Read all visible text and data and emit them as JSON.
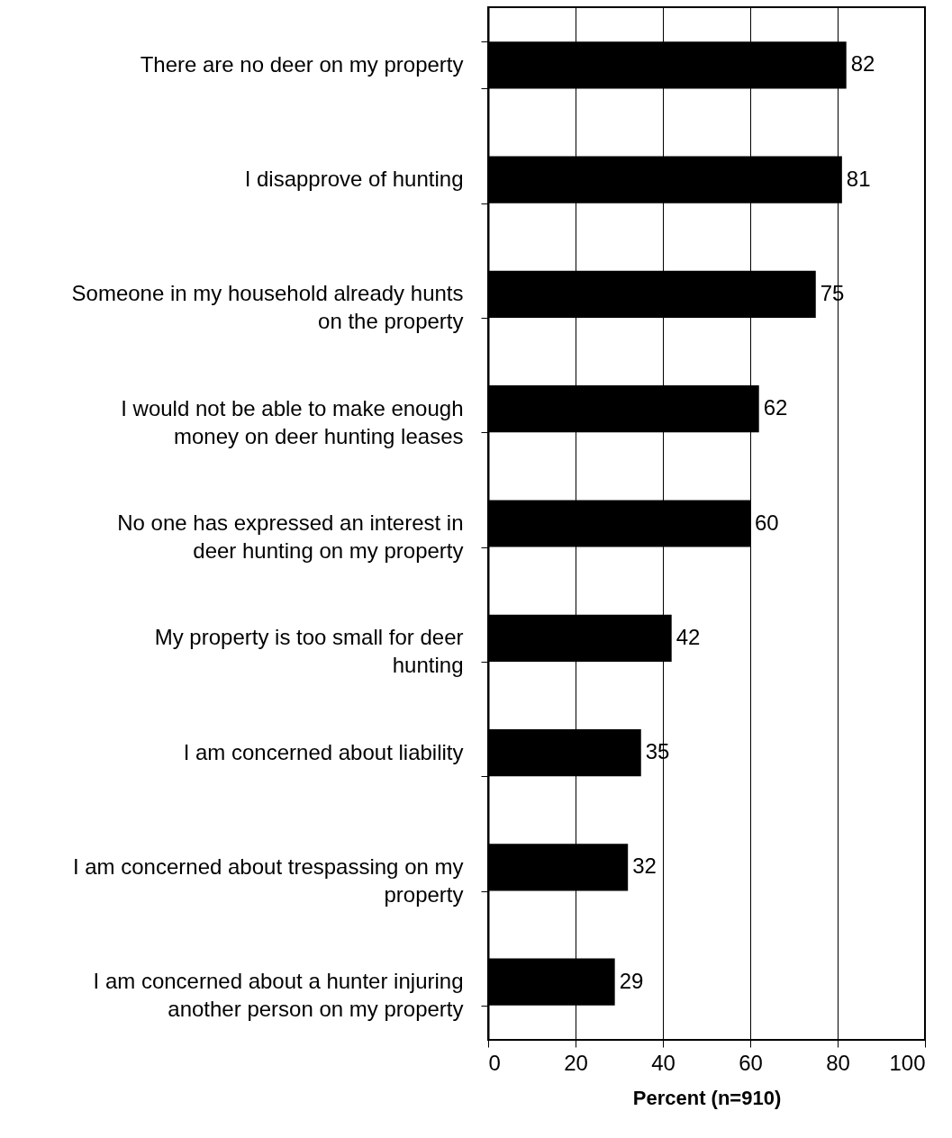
{
  "chart_data": {
    "type": "bar",
    "orientation": "horizontal",
    "xlabel": "Percent (n=910)",
    "categories": [
      "There are no deer on my property",
      "I disapprove of hunting",
      "Someone in my household already hunts on the property",
      "I would not be able to make enough money on deer hunting leases",
      "No one has expressed an interest in deer hunting on my property",
      "My property is too small for deer hunting",
      "I am concerned about liability",
      "I am concerned about trespassing on my property",
      "I am concerned about a hunter injuring another person on my property"
    ],
    "values": [
      82,
      81,
      75,
      62,
      60,
      42,
      35,
      32,
      29
    ],
    "color": "#000000",
    "data_labels": true,
    "xlim": [
      0,
      100
    ],
    "xticks": [
      0,
      20,
      40,
      60,
      80,
      100
    ],
    "grid": "x"
  }
}
